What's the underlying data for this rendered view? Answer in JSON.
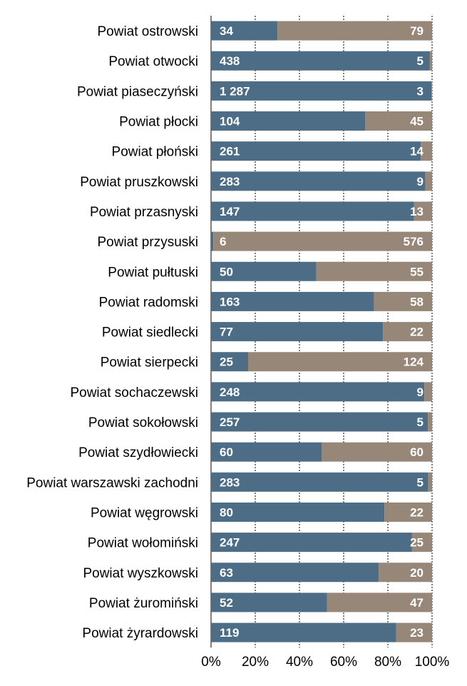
{
  "chart_data": {
    "type": "bar",
    "orientation": "horizontal",
    "stacked": "percent",
    "categories": [
      "Powiat ostrowski",
      "Powiat otwocki",
      "Powiat piaseczyński",
      "Powiat płocki",
      "Powiat płoński",
      "Powiat pruszkowski",
      "Powiat przasnyski",
      "Powiat przysuski",
      "Powiat pułtuski",
      "Powiat radomski",
      "Powiat siedlecki",
      "Powiat sierpecki",
      "Powiat sochaczewski",
      "Powiat sokołowski",
      "Powiat szydłowiecki",
      "Powiat warszawski zachodni",
      "Powiat węgrowski",
      "Powiat wołomiński",
      "Powiat wyszkowski",
      "Powiat żuromiński",
      "Powiat żyrardowski"
    ],
    "series": [
      {
        "name": "series-1",
        "color": "#4d6d87",
        "values": [
          34,
          438,
          1287,
          104,
          261,
          283,
          147,
          6,
          50,
          163,
          77,
          25,
          248,
          257,
          60,
          283,
          80,
          247,
          63,
          52,
          119
        ],
        "labels": [
          "34",
          "438",
          "1 287",
          "104",
          "261",
          "283",
          "147",
          "6",
          "50",
          "163",
          "77",
          "25",
          "248",
          "257",
          "60",
          "283",
          "80",
          "247",
          "63",
          "52",
          "119"
        ]
      },
      {
        "name": "series-2",
        "color": "#968779",
        "values": [
          79,
          5,
          3,
          45,
          14,
          9,
          13,
          576,
          55,
          58,
          22,
          124,
          9,
          5,
          60,
          5,
          22,
          25,
          20,
          47,
          23
        ],
        "labels": [
          "79",
          "5",
          "3",
          "45",
          "14",
          "9",
          "13",
          "576",
          "55",
          "58",
          "22",
          "124",
          "9",
          "5",
          "60",
          "5",
          "22",
          "25",
          "20",
          "47",
          "23"
        ]
      }
    ],
    "x_ticks": [
      "0%",
      "20%",
      "40%",
      "60%",
      "80%",
      "100%"
    ],
    "xlim": [
      0,
      100
    ],
    "grid": "vertical",
    "legend": "none",
    "title": "",
    "xlabel": "",
    "ylabel": ""
  }
}
